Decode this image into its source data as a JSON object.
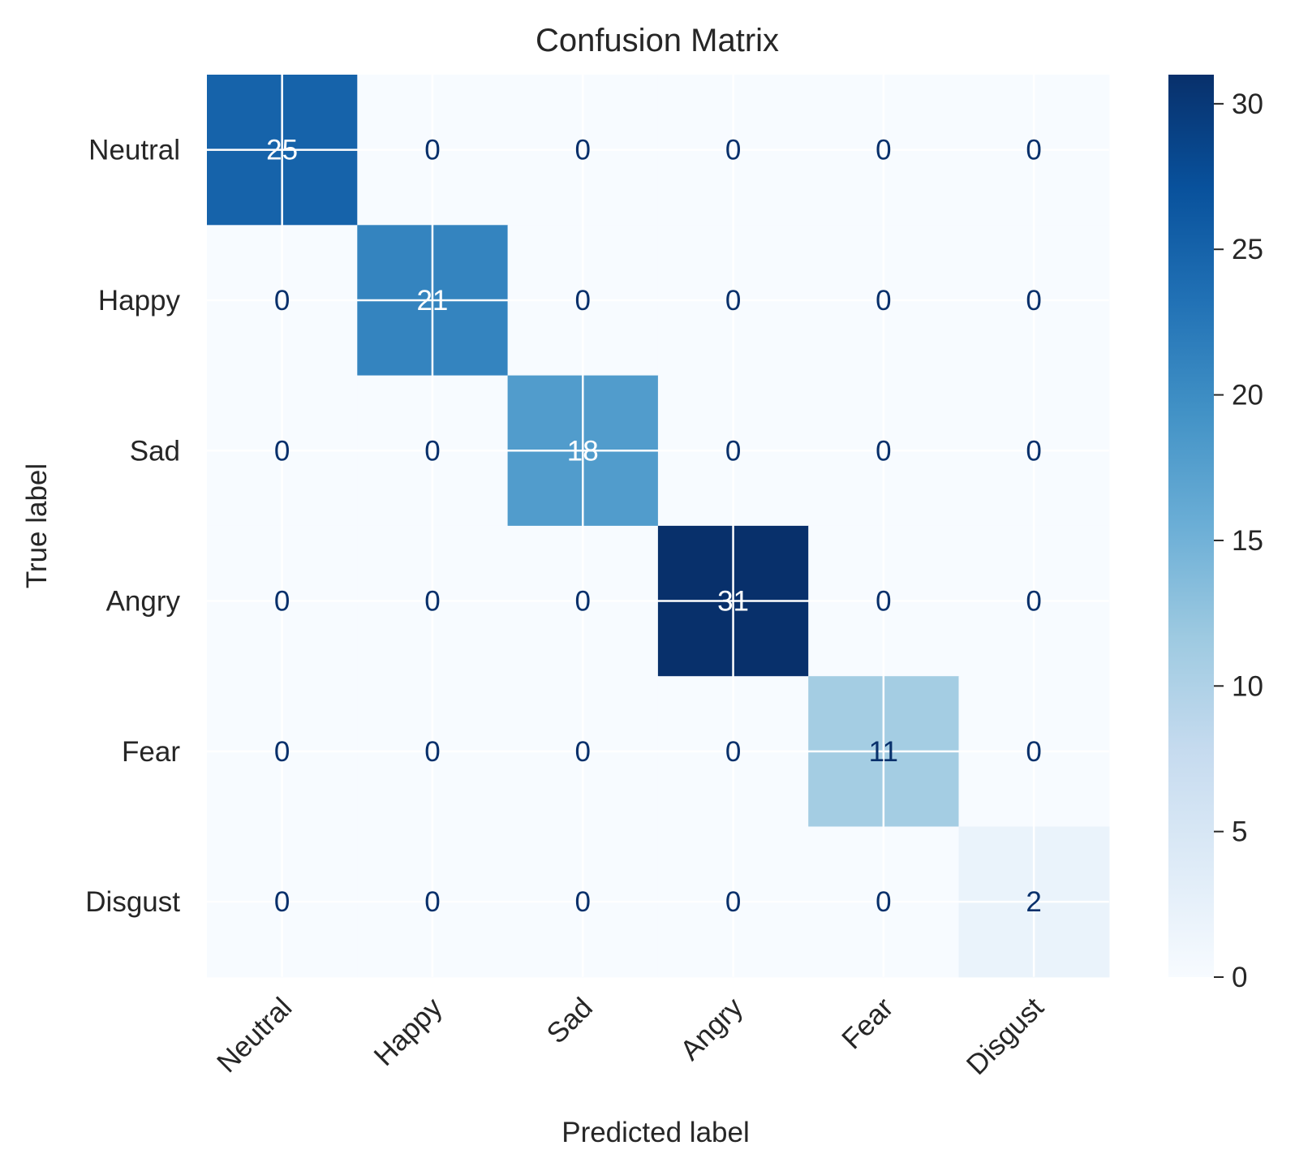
{
  "chart_data": {
    "type": "heatmap",
    "title": "Confusion Matrix",
    "xlabel": "Predicted label",
    "ylabel": "True label",
    "x_categories": [
      "Neutral",
      "Happy",
      "Sad",
      "Angry",
      "Fear",
      "Disgust"
    ],
    "y_categories": [
      "Neutral",
      "Happy",
      "Sad",
      "Angry",
      "Fear",
      "Disgust"
    ],
    "matrix": [
      [
        25,
        0,
        0,
        0,
        0,
        0
      ],
      [
        0,
        21,
        0,
        0,
        0,
        0
      ],
      [
        0,
        0,
        18,
        0,
        0,
        0
      ],
      [
        0,
        0,
        0,
        31,
        0,
        0
      ],
      [
        0,
        0,
        0,
        0,
        11,
        0
      ],
      [
        0,
        0,
        0,
        0,
        0,
        2
      ]
    ],
    "colormap": "Blues",
    "vmin": 0,
    "vmax": 31,
    "colorbar_ticks": [
      0,
      5,
      10,
      15,
      20,
      25,
      30
    ],
    "grid": true
  },
  "colors": {
    "text_dark": "#08306b",
    "text_light": "#ffffff",
    "grid": "#ffffff",
    "axis_text": "#262626"
  }
}
